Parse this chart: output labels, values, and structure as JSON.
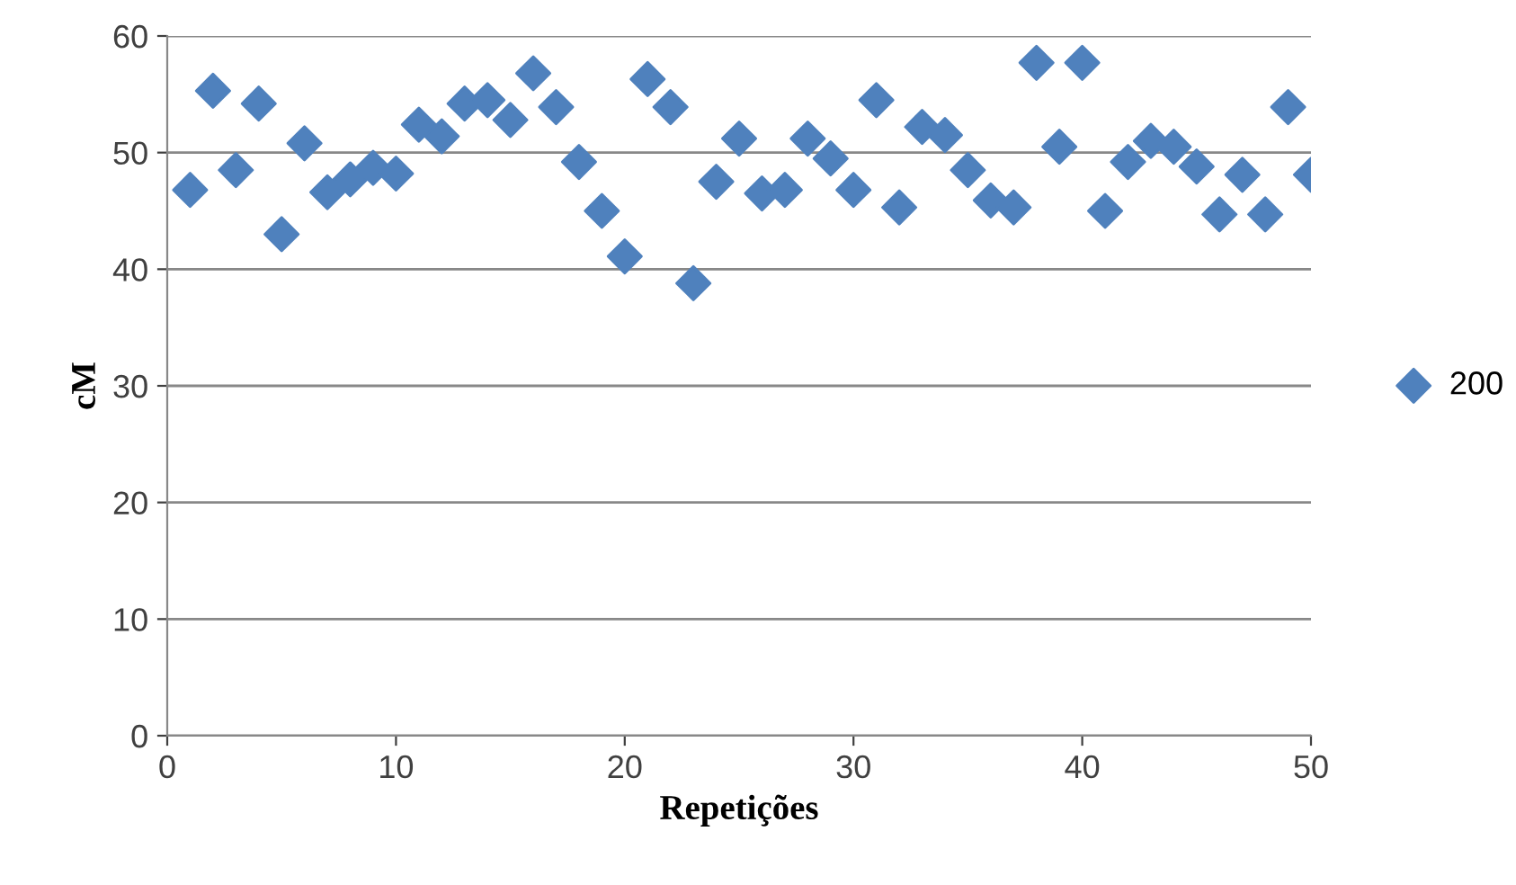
{
  "chart_data": {
    "type": "scatter",
    "xlabel": "Repetições",
    "ylabel": "cM",
    "x": [
      1,
      2,
      3,
      4,
      5,
      6,
      7,
      8,
      9,
      10,
      11,
      12,
      13,
      14,
      15,
      16,
      17,
      18,
      19,
      20,
      21,
      22,
      23,
      24,
      25,
      26,
      27,
      28,
      29,
      30,
      31,
      32,
      33,
      34,
      35,
      36,
      37,
      38,
      39,
      40,
      41,
      42,
      43,
      44,
      45,
      46,
      47,
      48,
      49,
      50
    ],
    "series": [
      {
        "name": "200",
        "color": "#4f81bd",
        "values": [
          46.8,
          55.3,
          48.5,
          54.2,
          43.0,
          50.8,
          46.6,
          47.7,
          48.7,
          48.2,
          52.4,
          51.4,
          54.2,
          54.5,
          52.8,
          56.8,
          53.9,
          49.2,
          45.0,
          41.1,
          56.3,
          53.9,
          38.8,
          47.5,
          51.2,
          46.5,
          46.8,
          51.2,
          49.5,
          46.8,
          54.5,
          45.3,
          52.2,
          51.5,
          48.5,
          45.9,
          45.3,
          57.7,
          50.5,
          57.7,
          45.0,
          49.2,
          51.0,
          50.5,
          48.8,
          44.7,
          48.1,
          44.7,
          53.9,
          48.1
        ]
      }
    ],
    "xlim": [
      0,
      50
    ],
    "xticks": [
      0,
      10,
      20,
      30,
      40,
      50
    ],
    "ylim": [
      0,
      60
    ],
    "yticks": [
      0,
      10,
      20,
      30,
      40,
      50,
      60
    ],
    "grid": "y",
    "legend": "right",
    "marker": "diamond"
  }
}
